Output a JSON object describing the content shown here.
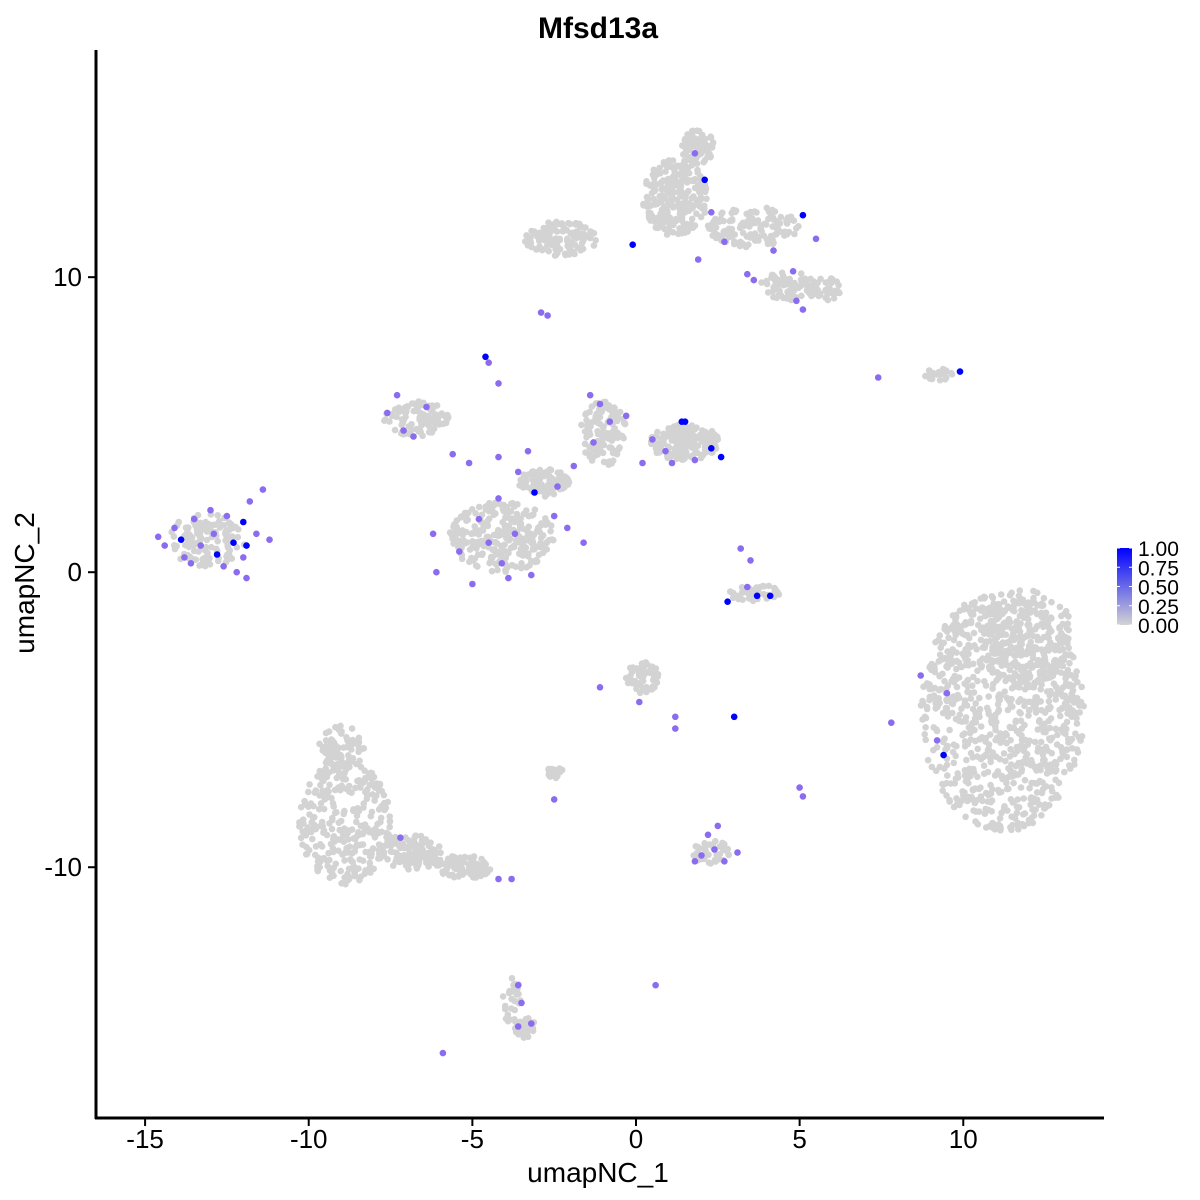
{
  "chart_data": {
    "type": "scatter",
    "title": "Mfsd13a",
    "xlabel": "umapNC_1",
    "ylabel": "umapNC_2",
    "xlim": [
      -16.5,
      14.3
    ],
    "ylim": [
      -18.5,
      17.7
    ],
    "x_ticks": [
      -15,
      -10,
      -5,
      0,
      5,
      10
    ],
    "x_tick_labels": [
      "-15",
      "-10",
      "-5",
      "0",
      "5",
      "10"
    ],
    "y_ticks": [
      -10,
      0,
      10
    ],
    "y_tick_labels": [
      "-10",
      "0",
      "10"
    ],
    "grid": false,
    "color_scale": {
      "low_color": "#d3d3d3",
      "high_color": "#0000ff",
      "mid_color": "#8b6cf0",
      "range": [
        0,
        1
      ],
      "ticks": [
        1.0,
        0.75,
        0.5,
        0.25,
        0.0
      ],
      "tick_labels": [
        "1.00",
        "0.75",
        "0.50",
        "0.25",
        "0.00"
      ],
      "legend_position": "right"
    },
    "clusters": [
      {
        "x": 11.2,
        "y": -4.7,
        "rx": 2.5,
        "ry": 4.1,
        "n": 900
      },
      {
        "x": 11.9,
        "y": -2.2,
        "rx": 1.5,
        "ry": 1.6,
        "n": 200
      },
      {
        "x": -8.9,
        "y": -8.5,
        "rx": 1.4,
        "ry": 2.1,
        "n": 300
      },
      {
        "x": -9.0,
        "y": -6.0,
        "rx": 0.7,
        "ry": 0.8,
        "n": 80
      },
      {
        "x": -6.9,
        "y": -9.5,
        "rx": 1.0,
        "ry": 0.6,
        "n": 120
      },
      {
        "x": -5.3,
        "y": -10.0,
        "rx": 0.9,
        "ry": 0.4,
        "n": 90
      },
      {
        "x": -3.8,
        "y": -14.5,
        "rx": 0.3,
        "ry": 0.8,
        "n": 30
      },
      {
        "x": -3.4,
        "y": -15.4,
        "rx": 0.3,
        "ry": 0.4,
        "n": 30
      },
      {
        "x": 1.2,
        "y": 12.7,
        "rx": 1.0,
        "ry": 1.3,
        "n": 250
      },
      {
        "x": 1.9,
        "y": 14.4,
        "rx": 0.5,
        "ry": 0.6,
        "n": 80
      },
      {
        "x": -2.3,
        "y": 11.3,
        "rx": 1.1,
        "ry": 0.6,
        "n": 120
      },
      {
        "x": 3.6,
        "y": 11.7,
        "rx": 1.4,
        "ry": 0.7,
        "n": 130
      },
      {
        "x": 4.7,
        "y": 9.7,
        "rx": 0.9,
        "ry": 0.5,
        "n": 80
      },
      {
        "x": 5.8,
        "y": 9.6,
        "rx": 0.5,
        "ry": 0.4,
        "n": 40
      },
      {
        "x": 1.5,
        "y": 4.4,
        "rx": 1.1,
        "ry": 0.6,
        "n": 180
      },
      {
        "x": -1.0,
        "y": 4.7,
        "rx": 0.7,
        "ry": 1.1,
        "n": 120
      },
      {
        "x": -4.1,
        "y": 1.2,
        "rx": 1.6,
        "ry": 1.2,
        "n": 260
      },
      {
        "x": -6.7,
        "y": 5.2,
        "rx": 1.0,
        "ry": 0.6,
        "n": 90
      },
      {
        "x": -2.8,
        "y": 3.0,
        "rx": 0.8,
        "ry": 0.5,
        "n": 90
      },
      {
        "x": -13.1,
        "y": 1.1,
        "rx": 1.2,
        "ry": 0.9,
        "n": 120
      },
      {
        "x": 9.3,
        "y": 6.7,
        "rx": 0.5,
        "ry": 0.2,
        "n": 25
      },
      {
        "x": 3.6,
        "y": -0.7,
        "rx": 0.8,
        "ry": 0.3,
        "n": 45
      },
      {
        "x": 0.2,
        "y": -3.6,
        "rx": 0.5,
        "ry": 0.6,
        "n": 60
      },
      {
        "x": -2.5,
        "y": -6.8,
        "rx": 0.3,
        "ry": 0.2,
        "n": 20
      },
      {
        "x": 2.3,
        "y": -9.5,
        "rx": 0.6,
        "ry": 0.4,
        "n": 40
      }
    ],
    "expressing_cells": [
      {
        "x": -13.9,
        "y": 1.1,
        "v": 1.0
      },
      {
        "x": -12.3,
        "y": 1.0,
        "v": 1.0
      },
      {
        "x": -12.0,
        "y": 1.7,
        "v": 1.0
      },
      {
        "x": -11.9,
        "y": 0.9,
        "v": 1.0
      },
      {
        "x": -12.8,
        "y": 0.6,
        "v": 1.0
      },
      {
        "x": -4.6,
        "y": 7.3,
        "v": 1.0
      },
      {
        "x": -3.1,
        "y": 2.7,
        "v": 1.0
      },
      {
        "x": 1.4,
        "y": 5.1,
        "v": 1.0
      },
      {
        "x": 1.5,
        "y": 5.1,
        "v": 1.0
      },
      {
        "x": 2.3,
        "y": 4.2,
        "v": 1.0
      },
      {
        "x": 2.6,
        "y": 3.9,
        "v": 1.0
      },
      {
        "x": 2.1,
        "y": 13.3,
        "v": 1.0
      },
      {
        "x": 5.1,
        "y": 12.1,
        "v": 1.0
      },
      {
        "x": -0.1,
        "y": 11.1,
        "v": 1.0
      },
      {
        "x": 9.9,
        "y": 6.8,
        "v": 1.0
      },
      {
        "x": 2.8,
        "y": -1.0,
        "v": 1.0
      },
      {
        "x": 3.7,
        "y": -0.8,
        "v": 1.0
      },
      {
        "x": 4.1,
        "y": -0.8,
        "v": 1.0
      },
      {
        "x": 3.0,
        "y": -4.9,
        "v": 1.0
      },
      {
        "x": 9.4,
        "y": -6.2,
        "v": 1.0
      },
      {
        "x": 1.8,
        "y": 14.2,
        "v": 0.5
      },
      {
        "x": 2.3,
        "y": 12.2,
        "v": 0.5
      },
      {
        "x": 2.7,
        "y": 11.2,
        "v": 0.5
      },
      {
        "x": 1.9,
        "y": 10.6,
        "v": 0.5
      },
      {
        "x": 3.4,
        "y": 10.1,
        "v": 0.5
      },
      {
        "x": 4.2,
        "y": 10.9,
        "v": 0.5
      },
      {
        "x": 4.8,
        "y": 10.2,
        "v": 0.5
      },
      {
        "x": 5.5,
        "y": 11.3,
        "v": 0.5
      },
      {
        "x": 4.9,
        "y": 9.2,
        "v": 0.5
      },
      {
        "x": 5.1,
        "y": 8.9,
        "v": 0.5
      },
      {
        "x": 3.6,
        "y": 9.9,
        "v": 0.5
      },
      {
        "x": -2.9,
        "y": 8.8,
        "v": 0.5
      },
      {
        "x": -2.7,
        "y": 8.7,
        "v": 0.5
      },
      {
        "x": 7.4,
        "y": 6.6,
        "v": 0.5
      },
      {
        "x": -7.3,
        "y": 6.0,
        "v": 0.5
      },
      {
        "x": -7.6,
        "y": 5.4,
        "v": 0.5
      },
      {
        "x": -7.1,
        "y": 4.8,
        "v": 0.5
      },
      {
        "x": -6.8,
        "y": 4.6,
        "v": 0.5
      },
      {
        "x": -6.4,
        "y": 5.6,
        "v": 0.5
      },
      {
        "x": -5.6,
        "y": 4.0,
        "v": 0.5
      },
      {
        "x": -5.1,
        "y": 3.7,
        "v": 0.5
      },
      {
        "x": -4.2,
        "y": 3.9,
        "v": 0.5
      },
      {
        "x": -3.6,
        "y": 3.4,
        "v": 0.5
      },
      {
        "x": -3.3,
        "y": 4.1,
        "v": 0.5
      },
      {
        "x": -4.5,
        "y": 7.1,
        "v": 0.5
      },
      {
        "x": -4.2,
        "y": 6.4,
        "v": 0.5
      },
      {
        "x": -1.4,
        "y": 6.0,
        "v": 0.5
      },
      {
        "x": -1.1,
        "y": 5.7,
        "v": 0.5
      },
      {
        "x": -0.8,
        "y": 5.1,
        "v": 0.5
      },
      {
        "x": -1.3,
        "y": 4.4,
        "v": 0.5
      },
      {
        "x": -0.3,
        "y": 5.3,
        "v": 0.5
      },
      {
        "x": 0.5,
        "y": 4.5,
        "v": 0.5
      },
      {
        "x": 0.9,
        "y": 4.1,
        "v": 0.5
      },
      {
        "x": 1.1,
        "y": 3.7,
        "v": 0.5
      },
      {
        "x": 1.8,
        "y": 3.8,
        "v": 0.5
      },
      {
        "x": 0.2,
        "y": 3.7,
        "v": 0.5
      },
      {
        "x": -1.9,
        "y": 3.6,
        "v": 0.5
      },
      {
        "x": -2.4,
        "y": 2.9,
        "v": 0.5
      },
      {
        "x": -2.5,
        "y": 1.9,
        "v": 0.5
      },
      {
        "x": -2.1,
        "y": 1.5,
        "v": 0.5
      },
      {
        "x": -1.6,
        "y": 1.0,
        "v": 0.5
      },
      {
        "x": -4.2,
        "y": 2.5,
        "v": 0.5
      },
      {
        "x": -4.8,
        "y": 1.8,
        "v": 0.5
      },
      {
        "x": -3.7,
        "y": 1.3,
        "v": 0.5
      },
      {
        "x": -4.5,
        "y": 1.0,
        "v": 0.5
      },
      {
        "x": -4.1,
        "y": 0.3,
        "v": 0.5
      },
      {
        "x": -3.9,
        "y": -0.2,
        "v": 0.5
      },
      {
        "x": -5.0,
        "y": -0.4,
        "v": 0.5
      },
      {
        "x": -3.2,
        "y": -0.1,
        "v": 0.5
      },
      {
        "x": -6.2,
        "y": 1.3,
        "v": 0.5
      },
      {
        "x": -6.1,
        "y": 0.0,
        "v": 0.5
      },
      {
        "x": -5.4,
        "y": 0.7,
        "v": 0.5
      },
      {
        "x": -14.4,
        "y": 0.9,
        "v": 0.5
      },
      {
        "x": -14.1,
        "y": 1.5,
        "v": 0.5
      },
      {
        "x": -13.8,
        "y": 0.5,
        "v": 0.5
      },
      {
        "x": -13.5,
        "y": 1.8,
        "v": 0.5
      },
      {
        "x": -13.3,
        "y": 0.9,
        "v": 0.5
      },
      {
        "x": -13.0,
        "y": 2.1,
        "v": 0.5
      },
      {
        "x": -12.9,
        "y": 1.3,
        "v": 0.5
      },
      {
        "x": -12.6,
        "y": 0.2,
        "v": 0.5
      },
      {
        "x": -12.5,
        "y": 1.9,
        "v": 0.5
      },
      {
        "x": -12.2,
        "y": 0.0,
        "v": 0.5
      },
      {
        "x": -11.8,
        "y": 2.4,
        "v": 0.5
      },
      {
        "x": -11.4,
        "y": 2.8,
        "v": 0.5
      },
      {
        "x": -11.6,
        "y": 1.3,
        "v": 0.5
      },
      {
        "x": -11.2,
        "y": 1.1,
        "v": 0.5
      },
      {
        "x": -14.6,
        "y": 1.2,
        "v": 0.5
      },
      {
        "x": -13.6,
        "y": 0.3,
        "v": 0.5
      },
      {
        "x": -12.0,
        "y": 0.5,
        "v": 0.5
      },
      {
        "x": 3.2,
        "y": 0.8,
        "v": 0.5
      },
      {
        "x": 3.5,
        "y": 0.4,
        "v": 0.5
      },
      {
        "x": 3.4,
        "y": -0.5,
        "v": 0.5
      },
      {
        "x": -11.9,
        "y": -0.2,
        "v": 0.5
      },
      {
        "x": 8.7,
        "y": -3.5,
        "v": 0.5
      },
      {
        "x": 7.8,
        "y": -5.1,
        "v": 0.5
      },
      {
        "x": 9.2,
        "y": -5.7,
        "v": 0.5
      },
      {
        "x": 9.5,
        "y": -4.1,
        "v": 0.5
      },
      {
        "x": -1.1,
        "y": -3.9,
        "v": 0.5
      },
      {
        "x": 0.1,
        "y": -4.4,
        "v": 0.5
      },
      {
        "x": 1.2,
        "y": -4.9,
        "v": 0.5
      },
      {
        "x": 1.2,
        "y": -5.3,
        "v": 0.5
      },
      {
        "x": -2.5,
        "y": -7.7,
        "v": 0.5
      },
      {
        "x": 5.0,
        "y": -7.3,
        "v": 0.5
      },
      {
        "x": 5.1,
        "y": -7.6,
        "v": 0.5
      },
      {
        "x": 2.0,
        "y": -9.6,
        "v": 0.5
      },
      {
        "x": 2.4,
        "y": -9.4,
        "v": 0.5
      },
      {
        "x": 2.7,
        "y": -9.8,
        "v": 0.5
      },
      {
        "x": 1.8,
        "y": -9.8,
        "v": 0.5
      },
      {
        "x": 2.2,
        "y": -8.9,
        "v": 0.5
      },
      {
        "x": 3.1,
        "y": -9.5,
        "v": 0.5
      },
      {
        "x": 2.5,
        "y": -8.6,
        "v": 0.5
      },
      {
        "x": -7.2,
        "y": -9.0,
        "v": 0.5
      },
      {
        "x": -4.2,
        "y": -10.4,
        "v": 0.5
      },
      {
        "x": -3.8,
        "y": -10.4,
        "v": 0.5
      },
      {
        "x": -3.6,
        "y": -14.0,
        "v": 0.5
      },
      {
        "x": -3.5,
        "y": -14.6,
        "v": 0.5
      },
      {
        "x": -3.6,
        "y": -15.4,
        "v": 0.5
      },
      {
        "x": -3.2,
        "y": -15.3,
        "v": 0.5
      },
      {
        "x": -5.9,
        "y": -16.3,
        "v": 0.5
      },
      {
        "x": 0.6,
        "y": -14.0,
        "v": 0.5
      }
    ]
  }
}
